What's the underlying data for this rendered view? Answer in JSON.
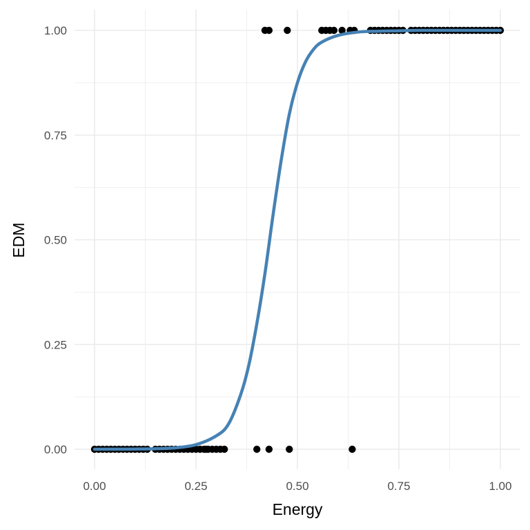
{
  "chart_data": {
    "type": "scatter",
    "xlabel": "Energy",
    "ylabel": "EDM",
    "xlim": [
      -0.05,
      1.05
    ],
    "ylim": [
      -0.05,
      1.05
    ],
    "x_ticks": [
      {
        "value": 0.0,
        "label": "0.00"
      },
      {
        "value": 0.25,
        "label": "0.25"
      },
      {
        "value": 0.5,
        "label": "0.50"
      },
      {
        "value": 0.75,
        "label": "0.75"
      },
      {
        "value": 1.0,
        "label": "1.00"
      }
    ],
    "y_ticks": [
      {
        "value": 0.0,
        "label": "0.00"
      },
      {
        "value": 0.25,
        "label": "0.25"
      },
      {
        "value": 0.5,
        "label": "0.50"
      },
      {
        "value": 0.75,
        "label": "0.75"
      },
      {
        "value": 1.0,
        "label": "1.00"
      }
    ],
    "grid": true,
    "legend": "none",
    "point_color": "#000000",
    "curve_color": "#4682b4",
    "background": "#ffffff",
    "grid_color": "#ebebeb",
    "points": [
      {
        "x": 0.0,
        "y": 0
      },
      {
        "x": 0.01,
        "y": 0
      },
      {
        "x": 0.02,
        "y": 0
      },
      {
        "x": 0.03,
        "y": 0
      },
      {
        "x": 0.04,
        "y": 0
      },
      {
        "x": 0.05,
        "y": 0
      },
      {
        "x": 0.06,
        "y": 0
      },
      {
        "x": 0.07,
        "y": 0
      },
      {
        "x": 0.08,
        "y": 0
      },
      {
        "x": 0.09,
        "y": 0
      },
      {
        "x": 0.1,
        "y": 0
      },
      {
        "x": 0.11,
        "y": 0
      },
      {
        "x": 0.12,
        "y": 0
      },
      {
        "x": 0.13,
        "y": 0
      },
      {
        "x": 0.15,
        "y": 0
      },
      {
        "x": 0.16,
        "y": 0
      },
      {
        "x": 0.17,
        "y": 0
      },
      {
        "x": 0.18,
        "y": 0
      },
      {
        "x": 0.19,
        "y": 0
      },
      {
        "x": 0.2,
        "y": 0
      },
      {
        "x": 0.21,
        "y": 0
      },
      {
        "x": 0.22,
        "y": 0
      },
      {
        "x": 0.23,
        "y": 0
      },
      {
        "x": 0.24,
        "y": 0
      },
      {
        "x": 0.25,
        "y": 0
      },
      {
        "x": 0.26,
        "y": 0
      },
      {
        "x": 0.27,
        "y": 0
      },
      {
        "x": 0.275,
        "y": 0
      },
      {
        "x": 0.28,
        "y": 0
      },
      {
        "x": 0.29,
        "y": 0
      },
      {
        "x": 0.3,
        "y": 0
      },
      {
        "x": 0.31,
        "y": 0
      },
      {
        "x": 0.32,
        "y": 0
      },
      {
        "x": 0.4,
        "y": 0
      },
      {
        "x": 0.43,
        "y": 0
      },
      {
        "x": 0.48,
        "y": 0
      },
      {
        "x": 0.635,
        "y": 0
      },
      {
        "x": 0.42,
        "y": 1
      },
      {
        "x": 0.43,
        "y": 1
      },
      {
        "x": 0.475,
        "y": 1
      },
      {
        "x": 0.56,
        "y": 1
      },
      {
        "x": 0.57,
        "y": 1
      },
      {
        "x": 0.58,
        "y": 1
      },
      {
        "x": 0.59,
        "y": 1
      },
      {
        "x": 0.61,
        "y": 1
      },
      {
        "x": 0.63,
        "y": 1
      },
      {
        "x": 0.64,
        "y": 1
      },
      {
        "x": 0.68,
        "y": 1
      },
      {
        "x": 0.69,
        "y": 1
      },
      {
        "x": 0.7,
        "y": 1
      },
      {
        "x": 0.71,
        "y": 1
      },
      {
        "x": 0.72,
        "y": 1
      },
      {
        "x": 0.73,
        "y": 1
      },
      {
        "x": 0.74,
        "y": 1
      },
      {
        "x": 0.75,
        "y": 1
      },
      {
        "x": 0.76,
        "y": 1
      },
      {
        "x": 0.78,
        "y": 1
      },
      {
        "x": 0.79,
        "y": 1
      },
      {
        "x": 0.8,
        "y": 1
      },
      {
        "x": 0.81,
        "y": 1
      },
      {
        "x": 0.82,
        "y": 1
      },
      {
        "x": 0.83,
        "y": 1
      },
      {
        "x": 0.84,
        "y": 1
      },
      {
        "x": 0.85,
        "y": 1
      },
      {
        "x": 0.86,
        "y": 1
      },
      {
        "x": 0.87,
        "y": 1
      },
      {
        "x": 0.88,
        "y": 1
      },
      {
        "x": 0.89,
        "y": 1
      },
      {
        "x": 0.9,
        "y": 1
      },
      {
        "x": 0.91,
        "y": 1
      },
      {
        "x": 0.92,
        "y": 1
      },
      {
        "x": 0.93,
        "y": 1
      },
      {
        "x": 0.94,
        "y": 1
      },
      {
        "x": 0.95,
        "y": 1
      },
      {
        "x": 0.96,
        "y": 1
      },
      {
        "x": 0.97,
        "y": 1
      },
      {
        "x": 0.98,
        "y": 1
      },
      {
        "x": 0.99,
        "y": 1
      },
      {
        "x": 1.0,
        "y": 1
      }
    ],
    "fit_curve": {
      "type": "logistic",
      "x": [
        0.0,
        0.05,
        0.1,
        0.15,
        0.2,
        0.25,
        0.3,
        0.33,
        0.36,
        0.38,
        0.4,
        0.42,
        0.44,
        0.46,
        0.48,
        0.5,
        0.52,
        0.54,
        0.56,
        0.6,
        0.65,
        0.7,
        0.75,
        0.8,
        0.85,
        0.9,
        0.95,
        1.0
      ],
      "y": [
        0.0,
        0.0002,
        0.0005,
        0.0013,
        0.0035,
        0.011,
        0.032,
        0.06,
        0.13,
        0.2,
        0.3,
        0.42,
        0.56,
        0.69,
        0.8,
        0.875,
        0.925,
        0.955,
        0.972,
        0.988,
        0.996,
        0.998,
        0.999,
        1.0,
        1.0,
        1.0,
        1.0,
        1.0
      ]
    }
  }
}
